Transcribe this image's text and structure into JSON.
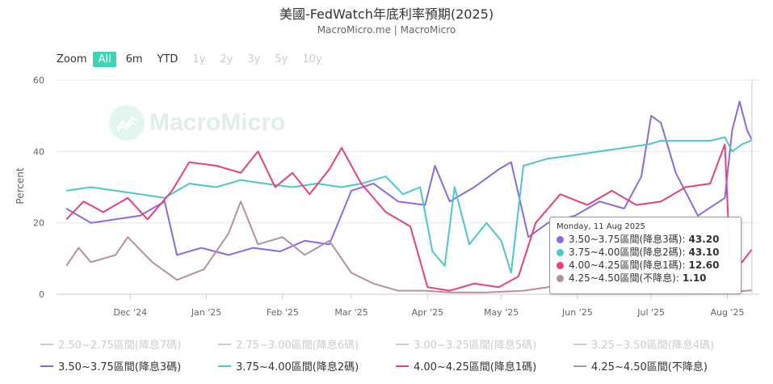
{
  "header": {
    "title": "美國-FedWatch年底利率預期(2025)",
    "source": "MacroMicro.me | MacroMicro"
  },
  "zoom": {
    "label": "Zoom",
    "buttons": [
      {
        "label": "All",
        "state": "active"
      },
      {
        "label": "6m",
        "state": "normal"
      },
      {
        "label": "YTD",
        "state": "normal"
      },
      {
        "label": "1y",
        "state": "disabled"
      },
      {
        "label": "2y",
        "state": "disabled"
      },
      {
        "label": "3y",
        "state": "disabled"
      },
      {
        "label": "5y",
        "state": "disabled"
      },
      {
        "label": "10y",
        "state": "disabled"
      }
    ]
  },
  "watermark": {
    "text": "MacroMicro"
  },
  "tooltip": {
    "date": "Monday, 11 Aug 2025",
    "rows": [
      {
        "label": "3.50~3.75區間(降息3碼):",
        "value": "43.20",
        "color": "#8b6ae0"
      },
      {
        "label": "3.75~4.00區間(降息2碼):",
        "value": "43.10",
        "color": "#4dc6cc"
      },
      {
        "label": "4.00~4.25區間(降息1碼):",
        "value": "12.60",
        "color": "#e8407a"
      },
      {
        "label": "4.25~4.50區間(不降息):",
        "value": "1.10",
        "color": "#b78fa3"
      }
    ]
  },
  "chart_data": {
    "type": "line",
    "ylabel": "Percent",
    "ylim": [
      0,
      60
    ],
    "yticks": [
      "0",
      "20",
      "40",
      "60"
    ],
    "xlim": [
      "2024-11-01",
      "2025-08-14"
    ],
    "xticks": [
      {
        "date": "2024-12-01",
        "label": "Dec '24"
      },
      {
        "date": "2025-01-01",
        "label": "Jan '25"
      },
      {
        "date": "2025-02-01",
        "label": "Feb '25"
      },
      {
        "date": "2025-03-01",
        "label": "Mar '25"
      },
      {
        "date": "2025-04-01",
        "label": "Apr '25"
      },
      {
        "date": "2025-05-01",
        "label": "May '25"
      },
      {
        "date": "2025-06-01",
        "label": "Jun '25"
      },
      {
        "date": "2025-07-01",
        "label": "Jul '25"
      },
      {
        "date": "2025-08-01",
        "label": "Aug '25"
      }
    ],
    "legend_position": "bottom",
    "grid": true,
    "series": [
      {
        "name": "2.50~2.75區間(降息7碼)",
        "color": "#cccccc",
        "visible": false,
        "points": []
      },
      {
        "name": "2.75~3.00區間(降息6碼)",
        "color": "#cccccc",
        "visible": false,
        "points": []
      },
      {
        "name": "3.00~3.25區間(降息5碼)",
        "color": "#cccccc",
        "visible": false,
        "points": []
      },
      {
        "name": "3.25~3.50區間(降息4碼)",
        "color": "#cccccc",
        "visible": false,
        "points": []
      },
      {
        "name": "3.50~3.75區間(降息3碼)",
        "color": "#8b6ae0",
        "visible": true,
        "points": [
          [
            "2024-11-05",
            24
          ],
          [
            "2024-11-15",
            20
          ],
          [
            "2024-11-25",
            21
          ],
          [
            "2024-12-05",
            22
          ],
          [
            "2024-12-15",
            26
          ],
          [
            "2024-12-20",
            11
          ],
          [
            "2024-12-30",
            13
          ],
          [
            "2025-01-10",
            11
          ],
          [
            "2025-01-20",
            13
          ],
          [
            "2025-01-31",
            12
          ],
          [
            "2025-02-10",
            15
          ],
          [
            "2025-02-20",
            14
          ],
          [
            "2025-03-01",
            29
          ],
          [
            "2025-03-10",
            31
          ],
          [
            "2025-03-20",
            26
          ],
          [
            "2025-03-31",
            25
          ],
          [
            "2025-04-04",
            36
          ],
          [
            "2025-04-10",
            26
          ],
          [
            "2025-04-20",
            30
          ],
          [
            "2025-04-30",
            35
          ],
          [
            "2025-05-05",
            37
          ],
          [
            "2025-05-12",
            16
          ],
          [
            "2025-05-20",
            20
          ],
          [
            "2025-05-31",
            22
          ],
          [
            "2025-06-10",
            26
          ],
          [
            "2025-06-20",
            24
          ],
          [
            "2025-06-27",
            33
          ],
          [
            "2025-07-01",
            50
          ],
          [
            "2025-07-05",
            48
          ],
          [
            "2025-07-11",
            34
          ],
          [
            "2025-07-20",
            22
          ],
          [
            "2025-07-31",
            27
          ],
          [
            "2025-08-03",
            46
          ],
          [
            "2025-08-06",
            54
          ],
          [
            "2025-08-09",
            46
          ],
          [
            "2025-08-11",
            43.2
          ]
        ]
      },
      {
        "name": "3.75~4.00區間(降息2碼)",
        "color": "#4dc6cc",
        "visible": true,
        "points": [
          [
            "2024-11-05",
            29
          ],
          [
            "2024-11-15",
            30
          ],
          [
            "2024-11-25",
            29
          ],
          [
            "2024-12-05",
            28
          ],
          [
            "2024-12-15",
            27
          ],
          [
            "2024-12-25",
            31
          ],
          [
            "2025-01-05",
            30
          ],
          [
            "2025-01-15",
            32
          ],
          [
            "2025-01-25",
            31
          ],
          [
            "2025-02-05",
            30
          ],
          [
            "2025-02-15",
            31
          ],
          [
            "2025-02-25",
            30
          ],
          [
            "2025-03-05",
            31
          ],
          [
            "2025-03-15",
            33
          ],
          [
            "2025-03-22",
            28
          ],
          [
            "2025-03-29",
            30
          ],
          [
            "2025-04-03",
            12
          ],
          [
            "2025-04-08",
            8
          ],
          [
            "2025-04-12",
            30
          ],
          [
            "2025-04-18",
            14
          ],
          [
            "2025-04-25",
            20
          ],
          [
            "2025-05-01",
            15
          ],
          [
            "2025-05-05",
            6
          ],
          [
            "2025-05-10",
            36
          ],
          [
            "2025-05-20",
            38
          ],
          [
            "2025-05-31",
            39
          ],
          [
            "2025-06-10",
            40
          ],
          [
            "2025-06-20",
            41
          ],
          [
            "2025-06-30",
            42
          ],
          [
            "2025-07-05",
            43
          ],
          [
            "2025-07-15",
            43
          ],
          [
            "2025-07-25",
            43
          ],
          [
            "2025-07-31",
            44
          ],
          [
            "2025-08-03",
            40
          ],
          [
            "2025-08-07",
            42
          ],
          [
            "2025-08-11",
            43.1
          ]
        ]
      },
      {
        "name": "4.00~4.25區間(降息1碼)",
        "color": "#e8407a",
        "visible": true,
        "points": [
          [
            "2024-11-05",
            21
          ],
          [
            "2024-11-12",
            26
          ],
          [
            "2024-11-20",
            23
          ],
          [
            "2024-11-30",
            27
          ],
          [
            "2024-12-08",
            21
          ],
          [
            "2024-12-18",
            29
          ],
          [
            "2024-12-25",
            37
          ],
          [
            "2025-01-05",
            36
          ],
          [
            "2025-01-15",
            34
          ],
          [
            "2025-01-22",
            40
          ],
          [
            "2025-01-29",
            30
          ],
          [
            "2025-02-05",
            34
          ],
          [
            "2025-02-12",
            28
          ],
          [
            "2025-02-20",
            35
          ],
          [
            "2025-02-25",
            41
          ],
          [
            "2025-03-05",
            31
          ],
          [
            "2025-03-15",
            23
          ],
          [
            "2025-03-25",
            19
          ],
          [
            "2025-04-01",
            2
          ],
          [
            "2025-04-10",
            1
          ],
          [
            "2025-04-20",
            3
          ],
          [
            "2025-04-30",
            2
          ],
          [
            "2025-05-08",
            5
          ],
          [
            "2025-05-15",
            20
          ],
          [
            "2025-05-25",
            28
          ],
          [
            "2025-06-05",
            25
          ],
          [
            "2025-06-15",
            29
          ],
          [
            "2025-06-25",
            25
          ],
          [
            "2025-07-05",
            26
          ],
          [
            "2025-07-15",
            30
          ],
          [
            "2025-07-25",
            31
          ],
          [
            "2025-07-31",
            42
          ],
          [
            "2025-08-02",
            11
          ],
          [
            "2025-08-07",
            9
          ],
          [
            "2025-08-11",
            12.6
          ]
        ]
      },
      {
        "name": "4.25~4.50區間(不降息)",
        "color": "#b78fa3",
        "visible": true,
        "points": [
          [
            "2024-11-05",
            8
          ],
          [
            "2024-11-10",
            13
          ],
          [
            "2024-11-15",
            9
          ],
          [
            "2024-11-25",
            11
          ],
          [
            "2024-11-30",
            16
          ],
          [
            "2024-12-10",
            9
          ],
          [
            "2024-12-20",
            4
          ],
          [
            "2024-12-31",
            7
          ],
          [
            "2025-01-10",
            17
          ],
          [
            "2025-01-15",
            26
          ],
          [
            "2025-01-22",
            14
          ],
          [
            "2025-02-01",
            16
          ],
          [
            "2025-02-10",
            11
          ],
          [
            "2025-02-20",
            15
          ],
          [
            "2025-03-01",
            6
          ],
          [
            "2025-03-10",
            3
          ],
          [
            "2025-03-20",
            1
          ],
          [
            "2025-03-31",
            1
          ],
          [
            "2025-04-10",
            0.5
          ],
          [
            "2025-04-25",
            0.5
          ],
          [
            "2025-05-10",
            1
          ],
          [
            "2025-05-20",
            2
          ],
          [
            "2025-05-31",
            5
          ],
          [
            "2025-06-10",
            8
          ],
          [
            "2025-06-20",
            6
          ],
          [
            "2025-06-30",
            3
          ],
          [
            "2025-07-10",
            2
          ],
          [
            "2025-07-20",
            1
          ],
          [
            "2025-07-31",
            0.5
          ],
          [
            "2025-08-11",
            1.1
          ]
        ]
      }
    ]
  }
}
